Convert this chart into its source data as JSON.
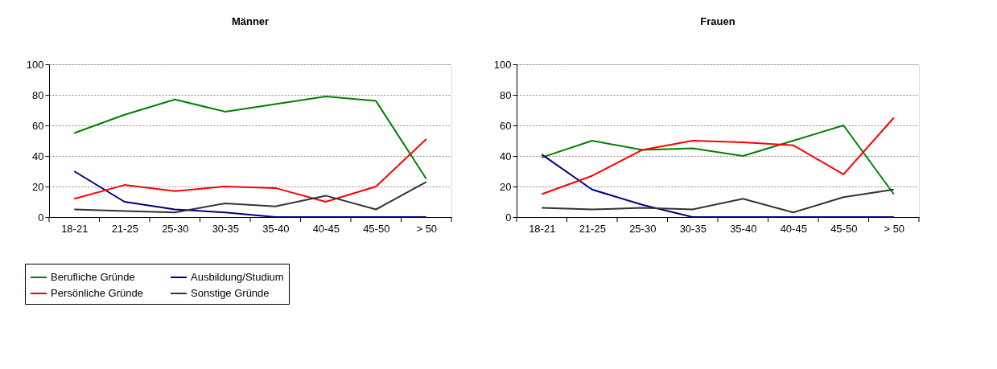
{
  "chart_data": [
    {
      "type": "line",
      "title": "Männer",
      "categories": [
        "18-21",
        "21-25",
        "25-30",
        "30-35",
        "35-40",
        "40-45",
        "45-50",
        "> 50"
      ],
      "ylim": [
        0,
        100
      ],
      "yticks": [
        0,
        20,
        40,
        60,
        80,
        100
      ],
      "grid": "y",
      "legend": "bottom",
      "line_style": "solid",
      "series": [
        {
          "name": "Berufliche Gründe",
          "color": "#008000",
          "values": [
            55,
            67,
            77,
            69,
            74,
            79,
            76,
            25
          ]
        },
        {
          "name": "Ausbildung/Studium",
          "color": "#000080",
          "values": [
            30,
            10,
            5,
            3,
            0,
            0,
            0,
            0
          ]
        },
        {
          "name": "Persönliche Gründe",
          "color": "#ff0000",
          "values": [
            12,
            21,
            17,
            20,
            19,
            10,
            20,
            51
          ]
        },
        {
          "name": "Sonstige Gründe",
          "color": "#333333",
          "values": [
            5,
            4,
            3,
            9,
            7,
            14,
            5,
            23
          ]
        }
      ]
    },
    {
      "type": "line",
      "title": "Frauen",
      "categories": [
        "18-21",
        "21-25",
        "25-30",
        "30-35",
        "35-40",
        "40-45",
        "45-50",
        "> 50"
      ],
      "ylim": [
        0,
        100
      ],
      "yticks": [
        0,
        20,
        40,
        60,
        80,
        100
      ],
      "grid": "y",
      "legend": false,
      "line_style": "solid",
      "series": [
        {
          "color": "#008000",
          "values": [
            39,
            50,
            44,
            45,
            40,
            50,
            60,
            15
          ]
        },
        {
          "color": "#000080",
          "values": [
            41,
            18,
            8,
            0,
            0,
            0,
            0,
            0
          ]
        },
        {
          "color": "#ff0000",
          "values": [
            15,
            27,
            44,
            50,
            49,
            47,
            28,
            65
          ]
        },
        {
          "color": "#333333",
          "values": [
            6,
            5,
            6,
            5,
            12,
            3,
            13,
            18
          ]
        }
      ]
    }
  ]
}
